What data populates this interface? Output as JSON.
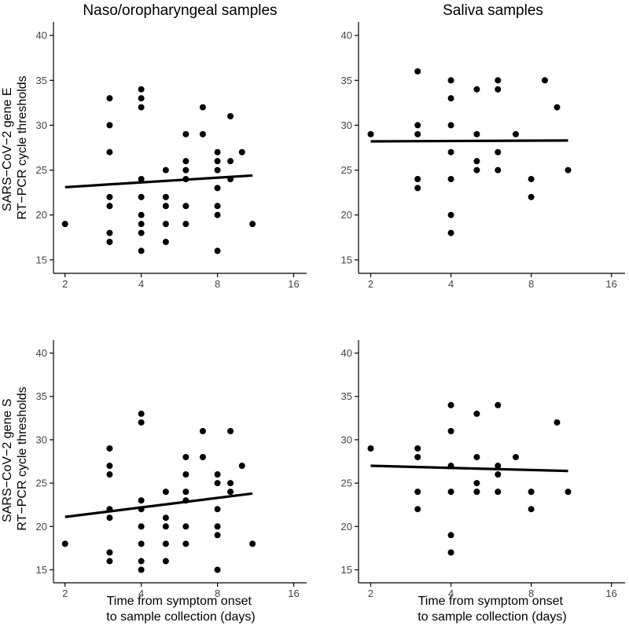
{
  "column_titles": [
    "Naso/oropharyngeal samples",
    "Saliva samples"
  ],
  "row_ylabels": [
    [
      "SARS−CoV−2 gene E",
      "RT−PCR cycle thresholds"
    ],
    [
      "SARS−CoV−2 gene S",
      "RT−PCR cycle thresholds"
    ]
  ],
  "xlabel_lines": [
    "Time from symptom onset",
    "to sample collection (days)"
  ],
  "colors": {
    "points": "#000000",
    "axis": "#000000",
    "tick_text": "#444444"
  },
  "chart_data": [
    {
      "type": "scatter",
      "panel": "top-left",
      "title": "Naso/oropharyngeal samples",
      "ylabel": "SARS−CoV−2 gene E RT−PCR cycle thresholds",
      "xscale": "log2",
      "xlim": [
        1.8,
        18
      ],
      "ylim": [
        13.5,
        41.5
      ],
      "xticks": [
        2,
        4,
        8,
        16
      ],
      "yticks": [
        15,
        20,
        25,
        30,
        35,
        40
      ],
      "points": [
        [
          2,
          19
        ],
        [
          3,
          33
        ],
        [
          3,
          30
        ],
        [
          3,
          27
        ],
        [
          3,
          22
        ],
        [
          3,
          21
        ],
        [
          3,
          18
        ],
        [
          3,
          17
        ],
        [
          4,
          34
        ],
        [
          4,
          33
        ],
        [
          4,
          32
        ],
        [
          4,
          24
        ],
        [
          4,
          22
        ],
        [
          4,
          20
        ],
        [
          4,
          19
        ],
        [
          4,
          18
        ],
        [
          4,
          16
        ],
        [
          5,
          25
        ],
        [
          5,
          22
        ],
        [
          5,
          21
        ],
        [
          5,
          19
        ],
        [
          5,
          17
        ],
        [
          6,
          29
        ],
        [
          6,
          26
        ],
        [
          6,
          25
        ],
        [
          6,
          24
        ],
        [
          6,
          21
        ],
        [
          6,
          19
        ],
        [
          7,
          32
        ],
        [
          7,
          29
        ],
        [
          8,
          27
        ],
        [
          8,
          26
        ],
        [
          8,
          25
        ],
        [
          8,
          23
        ],
        [
          8,
          21
        ],
        [
          8,
          20
        ],
        [
          8,
          16
        ],
        [
          9,
          31
        ],
        [
          9,
          26
        ],
        [
          9,
          24
        ],
        [
          10,
          27
        ],
        [
          11,
          19
        ]
      ],
      "fit_line": {
        "x": [
          2,
          11
        ],
        "y": [
          23.1,
          24.4
        ]
      }
    },
    {
      "type": "scatter",
      "panel": "top-right",
      "title": "Saliva samples",
      "xscale": "log2",
      "xlim": [
        1.8,
        18
      ],
      "ylim": [
        13.5,
        41.5
      ],
      "xticks": [
        2,
        4,
        8,
        16
      ],
      "yticks": [
        15,
        20,
        25,
        30,
        35,
        40
      ],
      "points": [
        [
          2,
          29
        ],
        [
          3,
          36
        ],
        [
          3,
          30
        ],
        [
          3,
          29
        ],
        [
          3,
          24
        ],
        [
          3,
          23
        ],
        [
          4,
          35
        ],
        [
          4,
          33
        ],
        [
          4,
          30
        ],
        [
          4,
          27
        ],
        [
          4,
          24
        ],
        [
          4,
          20
        ],
        [
          4,
          18
        ],
        [
          5,
          34
        ],
        [
          5,
          29
        ],
        [
          5,
          26
        ],
        [
          5,
          25
        ],
        [
          6,
          35
        ],
        [
          6,
          34
        ],
        [
          6,
          27
        ],
        [
          6,
          25
        ],
        [
          7,
          29
        ],
        [
          8,
          24
        ],
        [
          8,
          22
        ],
        [
          9,
          35
        ],
        [
          10,
          32
        ],
        [
          11,
          25
        ]
      ],
      "fit_line": {
        "x": [
          2,
          11
        ],
        "y": [
          28.2,
          28.3
        ]
      }
    },
    {
      "type": "scatter",
      "panel": "bottom-left",
      "ylabel": "SARS−CoV−2 gene S RT−PCR cycle thresholds",
      "xlabel": "Time from symptom onset to sample collection (days)",
      "xscale": "log2",
      "xlim": [
        1.8,
        18
      ],
      "ylim": [
        13.5,
        41.5
      ],
      "xticks": [
        2,
        4,
        8,
        16
      ],
      "yticks": [
        15,
        20,
        25,
        30,
        35,
        40
      ],
      "points": [
        [
          2,
          18
        ],
        [
          3,
          29
        ],
        [
          3,
          27
        ],
        [
          3,
          26
        ],
        [
          3,
          22
        ],
        [
          3,
          21
        ],
        [
          3,
          17
        ],
        [
          3,
          16
        ],
        [
          4,
          33
        ],
        [
          4,
          32
        ],
        [
          4,
          23
        ],
        [
          4,
          22
        ],
        [
          4,
          20
        ],
        [
          4,
          18
        ],
        [
          4,
          16
        ],
        [
          4,
          15
        ],
        [
          5,
          24
        ],
        [
          5,
          21
        ],
        [
          5,
          20
        ],
        [
          5,
          18
        ],
        [
          5,
          16
        ],
        [
          6,
          28
        ],
        [
          6,
          26
        ],
        [
          6,
          24
        ],
        [
          6,
          23
        ],
        [
          6,
          20
        ],
        [
          6,
          18
        ],
        [
          7,
          31
        ],
        [
          7,
          28
        ],
        [
          8,
          26
        ],
        [
          8,
          25
        ],
        [
          8,
          22
        ],
        [
          8,
          20
        ],
        [
          8,
          19
        ],
        [
          8,
          15
        ],
        [
          9,
          31
        ],
        [
          9,
          25
        ],
        [
          9,
          24
        ],
        [
          10,
          27
        ],
        [
          11,
          18
        ]
      ],
      "fit_line": {
        "x": [
          2,
          11
        ],
        "y": [
          21.1,
          23.8
        ]
      }
    },
    {
      "type": "scatter",
      "panel": "bottom-right",
      "xlabel": "Time from symptom onset to sample collection (days)",
      "xscale": "log2",
      "xlim": [
        1.8,
        18
      ],
      "ylim": [
        13.5,
        41.5
      ],
      "xticks": [
        2,
        4,
        8,
        16
      ],
      "yticks": [
        15,
        20,
        25,
        30,
        35,
        40
      ],
      "points": [
        [
          2,
          29
        ],
        [
          3,
          29
        ],
        [
          3,
          28
        ],
        [
          3,
          24
        ],
        [
          3,
          22
        ],
        [
          4,
          34
        ],
        [
          4,
          31
        ],
        [
          4,
          27
        ],
        [
          4,
          24
        ],
        [
          4,
          19
        ],
        [
          4,
          17
        ],
        [
          5,
          33
        ],
        [
          5,
          28
        ],
        [
          5,
          25
        ],
        [
          5,
          24
        ],
        [
          6,
          34
        ],
        [
          6,
          27
        ],
        [
          6,
          26
        ],
        [
          6,
          24
        ],
        [
          7,
          28
        ],
        [
          8,
          24
        ],
        [
          8,
          22
        ],
        [
          10,
          32
        ],
        [
          11,
          24
        ]
      ],
      "fit_line": {
        "x": [
          2,
          11
        ],
        "y": [
          27.0,
          26.4
        ]
      }
    }
  ]
}
